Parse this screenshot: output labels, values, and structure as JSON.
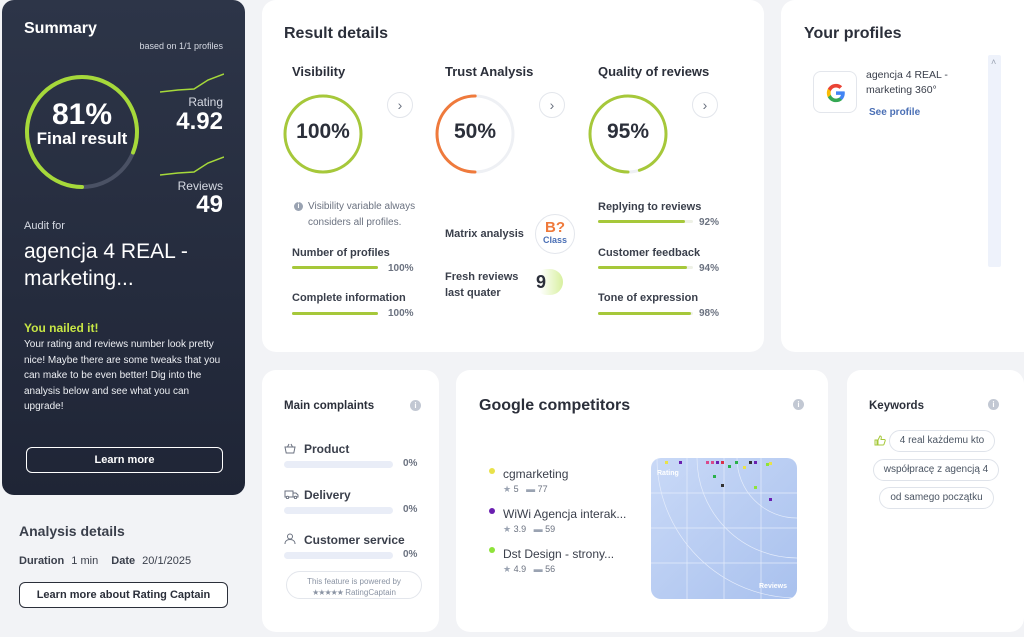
{
  "summary": {
    "title": "Summary",
    "based_on": "based on 1/1 profiles",
    "final_pct": "81%",
    "final_label": "Final result",
    "final_value": 0.81,
    "rating_label": "Rating",
    "rating_value": "4.92",
    "reviews_label": "Reviews",
    "reviews_value": "49",
    "audit_for": "Audit for",
    "name": "agencja 4 REAL - marketing...",
    "nailed": "You nailed it!",
    "description": "Your rating and reviews number look pretty nice! Maybe there are some tweaks that you can make to be even better! Dig into the analysis below and see what you can upgrade!",
    "learn_more": "Learn more",
    "accent_color": "#c7e645"
  },
  "analysis": {
    "title": "Analysis details",
    "duration_label": "Duration",
    "duration_value": "1 min",
    "date_label": "Date",
    "date_value": "20/1/2025",
    "button": "Learn more about Rating Captain"
  },
  "result": {
    "title": "Result details",
    "visibility": {
      "title": "Visibility",
      "value": "100%",
      "fraction": 1.0,
      "color": "#a6c83a",
      "note": "Visibility variable always considers all profiles.",
      "metrics": [
        {
          "label": "Number of profiles",
          "pct": "100%",
          "fraction": 1.0
        },
        {
          "label": "Complete information",
          "pct": "100%",
          "fraction": 1.0
        }
      ]
    },
    "trust": {
      "title": "Trust Analysis",
      "value": "50%",
      "fraction": 0.5,
      "color": "#ef7a3c",
      "matrix_label": "Matrix analysis",
      "matrix_grade": "B?",
      "matrix_class": "Class",
      "fresh_label": "Fresh reviews last quater",
      "fresh_value": "9"
    },
    "quality": {
      "title": "Quality of reviews",
      "value": "95%",
      "fraction": 0.95,
      "color": "#a6c83a",
      "metrics": [
        {
          "label": "Replying to reviews",
          "pct": "92%",
          "fraction": 0.92
        },
        {
          "label": "Customer feedback",
          "pct": "94%",
          "fraction": 0.94
        },
        {
          "label": "Tone of expression",
          "pct": "98%",
          "fraction": 0.98
        }
      ]
    }
  },
  "profiles": {
    "title": "Your profiles",
    "items": [
      {
        "name": "agencja 4 REAL - marketing 360°",
        "link": "See profile",
        "icon": "google-icon"
      }
    ]
  },
  "complaints": {
    "title": "Main complaints",
    "items": [
      {
        "label": "Product",
        "pct": "0%",
        "icon": "basket-icon"
      },
      {
        "label": "Delivery",
        "pct": "0%",
        "icon": "truck-icon"
      },
      {
        "label": "Customer service",
        "pct": "0%",
        "icon": "person-icon"
      }
    ],
    "powered_line1": "This feature is powered by",
    "powered_line2": "RatingCaptain"
  },
  "competitors": {
    "title": "Google competitors",
    "items": [
      {
        "name": "cgmarketing",
        "rating": "5",
        "reviews": "77",
        "color": "#e9e24a"
      },
      {
        "name": "WiWi Agencja interak...",
        "rating": "3.9",
        "reviews": "59",
        "color": "#6a1fb0"
      },
      {
        "name": "Dst Design - strony...",
        "rating": "4.9",
        "reviews": "56",
        "color": "#8ee33a"
      }
    ],
    "plot_label_top": "Rating",
    "plot_label_bottom": "Reviews"
  },
  "keywords": {
    "title": "Keywords",
    "items": [
      "4 real każdemu kto",
      "współpracę z agencją 4",
      "od samego początku"
    ]
  }
}
